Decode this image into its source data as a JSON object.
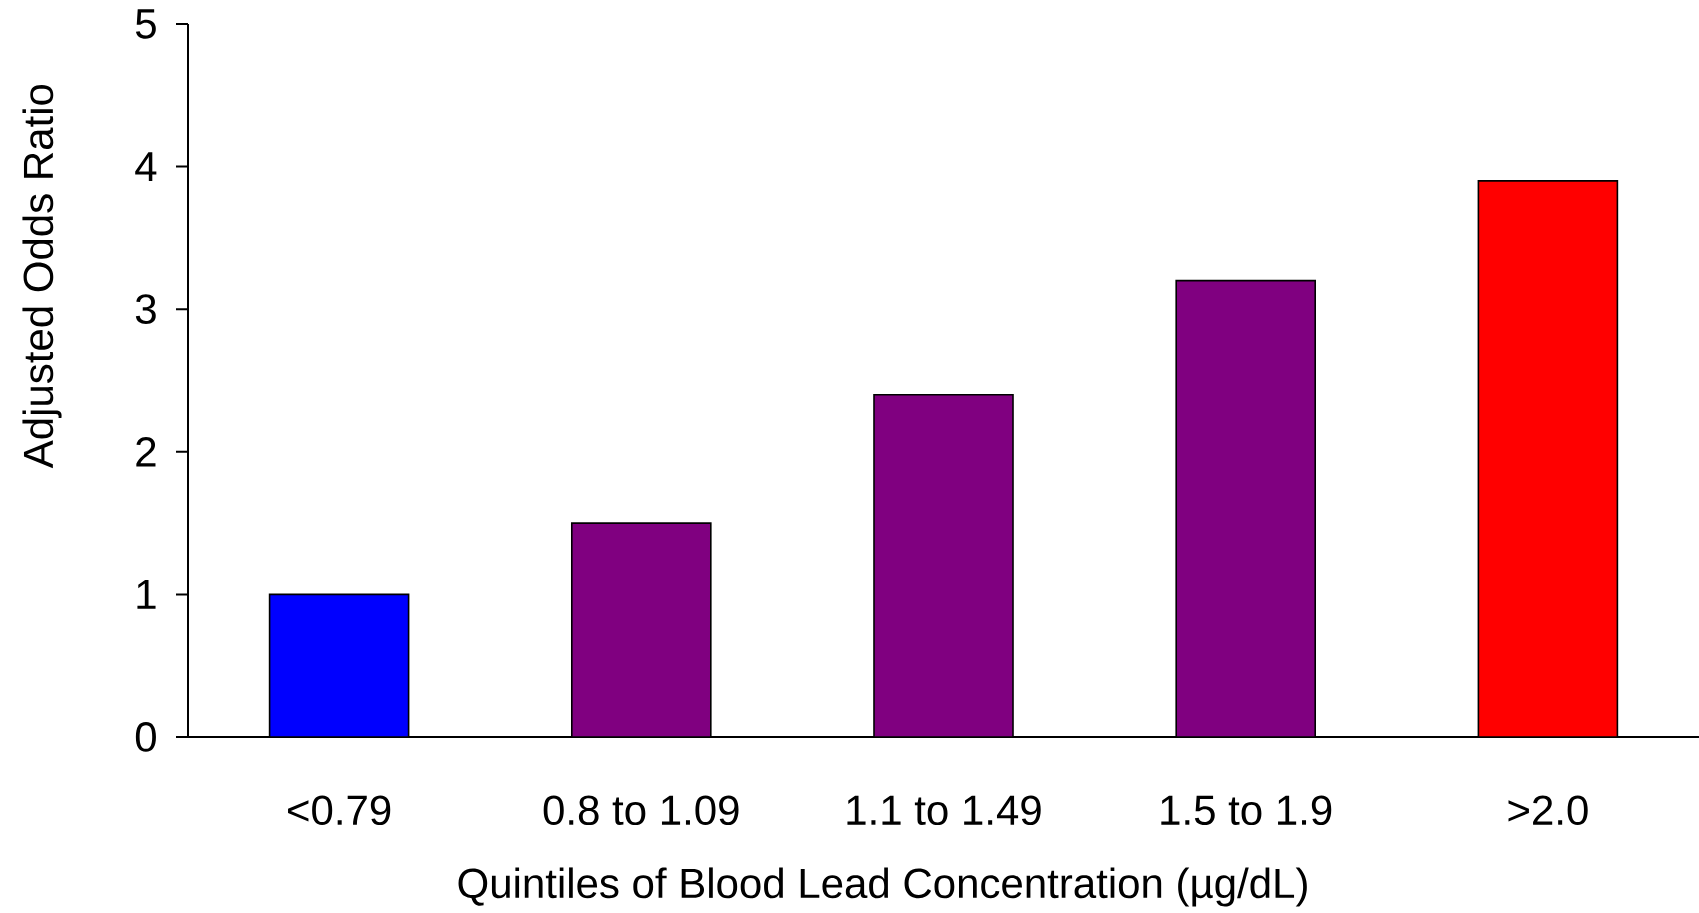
{
  "chart_data": {
    "type": "bar",
    "xlabel": "Quintiles of Blood Lead Concentration (µg/dL)",
    "ylabel": "Adjusted Odds Ratio",
    "categories": [
      "<0.79",
      "0.8 to 1.09",
      "1.1 to 1.49",
      "1.5 to 1.9",
      ">2.0"
    ],
    "values": [
      1.0,
      1.5,
      2.4,
      3.2,
      3.9
    ],
    "colors": [
      "#0000ff",
      "#800080",
      "#800080",
      "#800080",
      "#ff0000"
    ],
    "ylim": [
      0,
      5
    ],
    "yticks": [
      0,
      1,
      2,
      3,
      4,
      5
    ],
    "grid": false
  }
}
